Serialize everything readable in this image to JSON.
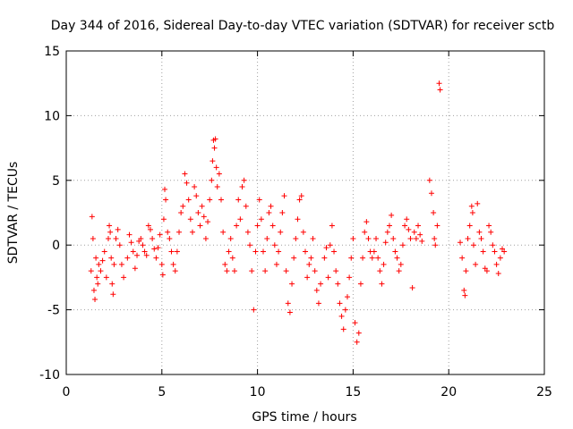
{
  "chart_data": {
    "type": "scatter",
    "title": "Day 344 of 2016, Sidereal Day-to-day VTEC variation (SDTVAR) for receiver sctb",
    "xlabel": "GPS time / hours",
    "ylabel": "SDTVAR / TECUs",
    "xlim": [
      0,
      25
    ],
    "ylim": [
      -10,
      15
    ],
    "xticks": [
      0,
      5,
      10,
      15,
      20,
      25
    ],
    "yticks": [
      -10,
      -5,
      0,
      5,
      10,
      15
    ],
    "grid": true,
    "marker": "+",
    "color": "#ff0000",
    "series": [
      {
        "name": "SDTVAR",
        "points": [
          [
            1.3,
            -2.0
          ],
          [
            1.35,
            2.2
          ],
          [
            1.4,
            0.5
          ],
          [
            1.45,
            -3.5
          ],
          [
            1.5,
            -4.2
          ],
          [
            1.55,
            -1.0
          ],
          [
            1.6,
            -2.5
          ],
          [
            1.65,
            -3.0
          ],
          [
            1.7,
            -1.5
          ],
          [
            1.8,
            -2.0
          ],
          [
            1.9,
            -1.2
          ],
          [
            2.0,
            -0.5
          ],
          [
            2.1,
            -2.5
          ],
          [
            2.2,
            0.5
          ],
          [
            2.25,
            1.5
          ],
          [
            2.3,
            1.0
          ],
          [
            2.35,
            -1.0
          ],
          [
            2.4,
            -3.0
          ],
          [
            2.45,
            -3.8
          ],
          [
            2.5,
            -1.5
          ],
          [
            2.6,
            0.5
          ],
          [
            2.7,
            1.2
          ],
          [
            2.8,
            0.0
          ],
          [
            2.9,
            -1.5
          ],
          [
            3.0,
            -2.5
          ],
          [
            3.2,
            -1.0
          ],
          [
            3.3,
            0.8
          ],
          [
            3.4,
            0.2
          ],
          [
            3.5,
            -0.5
          ],
          [
            3.6,
            -1.8
          ],
          [
            3.7,
            -0.8
          ],
          [
            3.8,
            0.3
          ],
          [
            3.9,
            0.5
          ],
          [
            4.0,
            0.0
          ],
          [
            4.1,
            -0.5
          ],
          [
            4.2,
            -0.8
          ],
          [
            4.3,
            1.5
          ],
          [
            4.4,
            1.2
          ],
          [
            4.5,
            0.5
          ],
          [
            4.6,
            -0.3
          ],
          [
            4.7,
            -1.0
          ],
          [
            4.8,
            -0.2
          ],
          [
            4.9,
            0.8
          ],
          [
            5.0,
            -1.5
          ],
          [
            5.05,
            -2.3
          ],
          [
            5.1,
            2.0
          ],
          [
            5.15,
            4.3
          ],
          [
            5.2,
            3.5
          ],
          [
            5.3,
            1.0
          ],
          [
            5.4,
            0.5
          ],
          [
            5.5,
            -0.5
          ],
          [
            5.6,
            -1.5
          ],
          [
            5.7,
            -2.0
          ],
          [
            5.8,
            -0.5
          ],
          [
            5.9,
            1.0
          ],
          [
            6.0,
            2.5
          ],
          [
            6.1,
            3.0
          ],
          [
            6.2,
            5.5
          ],
          [
            6.3,
            4.8
          ],
          [
            6.4,
            3.5
          ],
          [
            6.5,
            2.0
          ],
          [
            6.6,
            1.0
          ],
          [
            6.7,
            4.5
          ],
          [
            6.8,
            3.8
          ],
          [
            6.9,
            2.5
          ],
          [
            7.0,
            1.5
          ],
          [
            7.1,
            3.0
          ],
          [
            7.2,
            2.2
          ],
          [
            7.3,
            0.5
          ],
          [
            7.4,
            1.8
          ],
          [
            7.5,
            3.5
          ],
          [
            7.6,
            5.0
          ],
          [
            7.65,
            6.5
          ],
          [
            7.7,
            8.1
          ],
          [
            7.75,
            7.5
          ],
          [
            7.8,
            8.2
          ],
          [
            7.85,
            6.0
          ],
          [
            7.9,
            4.5
          ],
          [
            8.0,
            5.5
          ],
          [
            8.1,
            3.5
          ],
          [
            8.2,
            1.0
          ],
          [
            8.3,
            -1.5
          ],
          [
            8.4,
            -2.0
          ],
          [
            8.5,
            -0.5
          ],
          [
            8.6,
            0.5
          ],
          [
            8.7,
            -1.0
          ],
          [
            8.8,
            -2.0
          ],
          [
            8.9,
            1.5
          ],
          [
            9.0,
            3.5
          ],
          [
            9.1,
            2.0
          ],
          [
            9.2,
            4.5
          ],
          [
            9.3,
            5.0
          ],
          [
            9.4,
            3.0
          ],
          [
            9.5,
            1.0
          ],
          [
            9.6,
            0.0
          ],
          [
            9.7,
            -2.0
          ],
          [
            9.8,
            -5.0
          ],
          [
            9.9,
            -0.5
          ],
          [
            10.0,
            1.5
          ],
          [
            10.1,
            3.5
          ],
          [
            10.2,
            2.0
          ],
          [
            10.3,
            -0.5
          ],
          [
            10.4,
            -2.0
          ],
          [
            10.5,
            0.5
          ],
          [
            10.6,
            2.5
          ],
          [
            10.7,
            3.0
          ],
          [
            10.8,
            1.5
          ],
          [
            10.9,
            0.0
          ],
          [
            11.0,
            -1.5
          ],
          [
            11.1,
            -0.5
          ],
          [
            11.2,
            1.0
          ],
          [
            11.3,
            2.5
          ],
          [
            11.4,
            3.8
          ],
          [
            11.5,
            -2.0
          ],
          [
            11.6,
            -4.5
          ],
          [
            11.7,
            -5.2
          ],
          [
            11.8,
            -3.0
          ],
          [
            11.9,
            -1.0
          ],
          [
            12.0,
            0.5
          ],
          [
            12.1,
            2.0
          ],
          [
            12.2,
            3.5
          ],
          [
            12.3,
            3.8
          ],
          [
            12.4,
            1.0
          ],
          [
            12.5,
            -0.5
          ],
          [
            12.6,
            -2.5
          ],
          [
            12.7,
            -1.5
          ],
          [
            12.8,
            -1.0
          ],
          [
            12.9,
            0.5
          ],
          [
            13.0,
            -2.0
          ],
          [
            13.1,
            -3.5
          ],
          [
            13.2,
            -4.5
          ],
          [
            13.3,
            -3.0
          ],
          [
            13.5,
            -1.0
          ],
          [
            13.6,
            -0.2
          ],
          [
            13.7,
            -2.5
          ],
          [
            13.8,
            0.0
          ],
          [
            13.9,
            1.5
          ],
          [
            14.0,
            -0.5
          ],
          [
            14.1,
            -2.0
          ],
          [
            14.2,
            -3.0
          ],
          [
            14.3,
            -4.5
          ],
          [
            14.4,
            -5.5
          ],
          [
            14.5,
            -6.5
          ],
          [
            14.6,
            -5.0
          ],
          [
            14.7,
            -4.0
          ],
          [
            14.8,
            -2.5
          ],
          [
            14.9,
            -1.0
          ],
          [
            15.0,
            0.5
          ],
          [
            15.1,
            -6.0
          ],
          [
            15.2,
            -7.5
          ],
          [
            15.3,
            -6.8
          ],
          [
            15.4,
            -3.0
          ],
          [
            15.5,
            -1.0
          ],
          [
            15.6,
            1.0
          ],
          [
            15.7,
            1.8
          ],
          [
            15.8,
            0.5
          ],
          [
            15.9,
            -0.5
          ],
          [
            16.0,
            -1.0
          ],
          [
            16.1,
            -0.5
          ],
          [
            16.2,
            0.5
          ],
          [
            16.3,
            -1.0
          ],
          [
            16.4,
            -2.0
          ],
          [
            16.5,
            -3.0
          ],
          [
            16.6,
            -1.5
          ],
          [
            16.7,
            0.2
          ],
          [
            16.8,
            1.0
          ],
          [
            16.9,
            1.5
          ],
          [
            17.0,
            2.3
          ],
          [
            17.1,
            0.5
          ],
          [
            17.2,
            -0.5
          ],
          [
            17.3,
            -1.0
          ],
          [
            17.4,
            -2.0
          ],
          [
            17.5,
            -1.5
          ],
          [
            17.6,
            0.0
          ],
          [
            17.7,
            1.5
          ],
          [
            17.8,
            2.0
          ],
          [
            17.9,
            1.2
          ],
          [
            18.0,
            0.5
          ],
          [
            18.1,
            -3.3
          ],
          [
            18.2,
            1.0
          ],
          [
            18.3,
            0.5
          ],
          [
            18.4,
            1.5
          ],
          [
            18.5,
            0.8
          ],
          [
            18.6,
            0.3
          ],
          [
            19.0,
            5.0
          ],
          [
            19.1,
            4.0
          ],
          [
            19.2,
            2.5
          ],
          [
            19.25,
            0.5
          ],
          [
            19.3,
            0.0
          ],
          [
            19.4,
            1.5
          ],
          [
            19.5,
            12.5
          ],
          [
            19.55,
            12.0
          ],
          [
            20.6,
            0.2
          ],
          [
            20.7,
            -1.0
          ],
          [
            20.8,
            -3.5
          ],
          [
            20.85,
            -3.9
          ],
          [
            20.9,
            -2.0
          ],
          [
            21.0,
            0.5
          ],
          [
            21.1,
            1.5
          ],
          [
            21.2,
            3.0
          ],
          [
            21.25,
            2.5
          ],
          [
            21.3,
            0.0
          ],
          [
            21.4,
            -1.5
          ],
          [
            21.5,
            3.2
          ],
          [
            21.6,
            1.0
          ],
          [
            21.7,
            0.5
          ],
          [
            21.8,
            -0.5
          ],
          [
            21.9,
            -1.8
          ],
          [
            22.0,
            -2.0
          ],
          [
            22.1,
            1.5
          ],
          [
            22.2,
            1.0
          ],
          [
            22.3,
            0.0
          ],
          [
            22.4,
            -0.5
          ],
          [
            22.5,
            -1.5
          ],
          [
            22.6,
            -2.2
          ],
          [
            22.7,
            -1.0
          ],
          [
            22.8,
            -0.3
          ],
          [
            22.9,
            -0.5
          ]
        ]
      }
    ]
  }
}
